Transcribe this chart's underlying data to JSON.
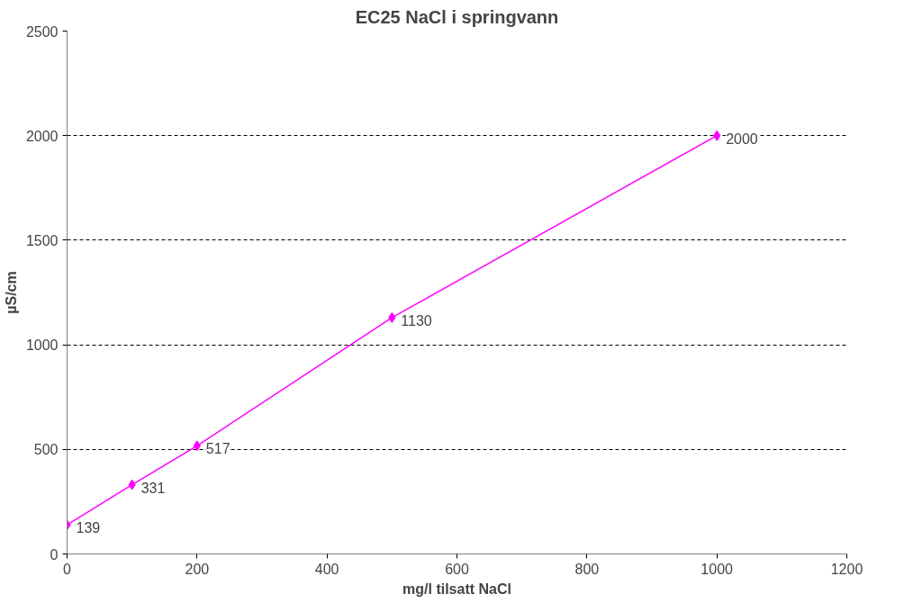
{
  "chart_data": {
    "type": "line",
    "title": "EC25 NaCl i springvann",
    "xlabel": "mg/l tilsatt NaCl",
    "ylabel": "µS/cm",
    "x": [
      0,
      100,
      200,
      500,
      1000
    ],
    "series": [
      {
        "color": "#ff00ff",
        "values": [
          139,
          331,
          517,
          1130,
          2000
        ]
      }
    ],
    "xlim": [
      0,
      1200
    ],
    "xticks": [
      0,
      200,
      400,
      600,
      800,
      1000,
      1200
    ],
    "ylim": [
      0,
      2500
    ],
    "yticks": [
      0,
      500,
      1000,
      1500,
      2000,
      2500
    ],
    "grid": "y",
    "marker": "diamond",
    "line_style": "solid",
    "data_labels": true
  }
}
